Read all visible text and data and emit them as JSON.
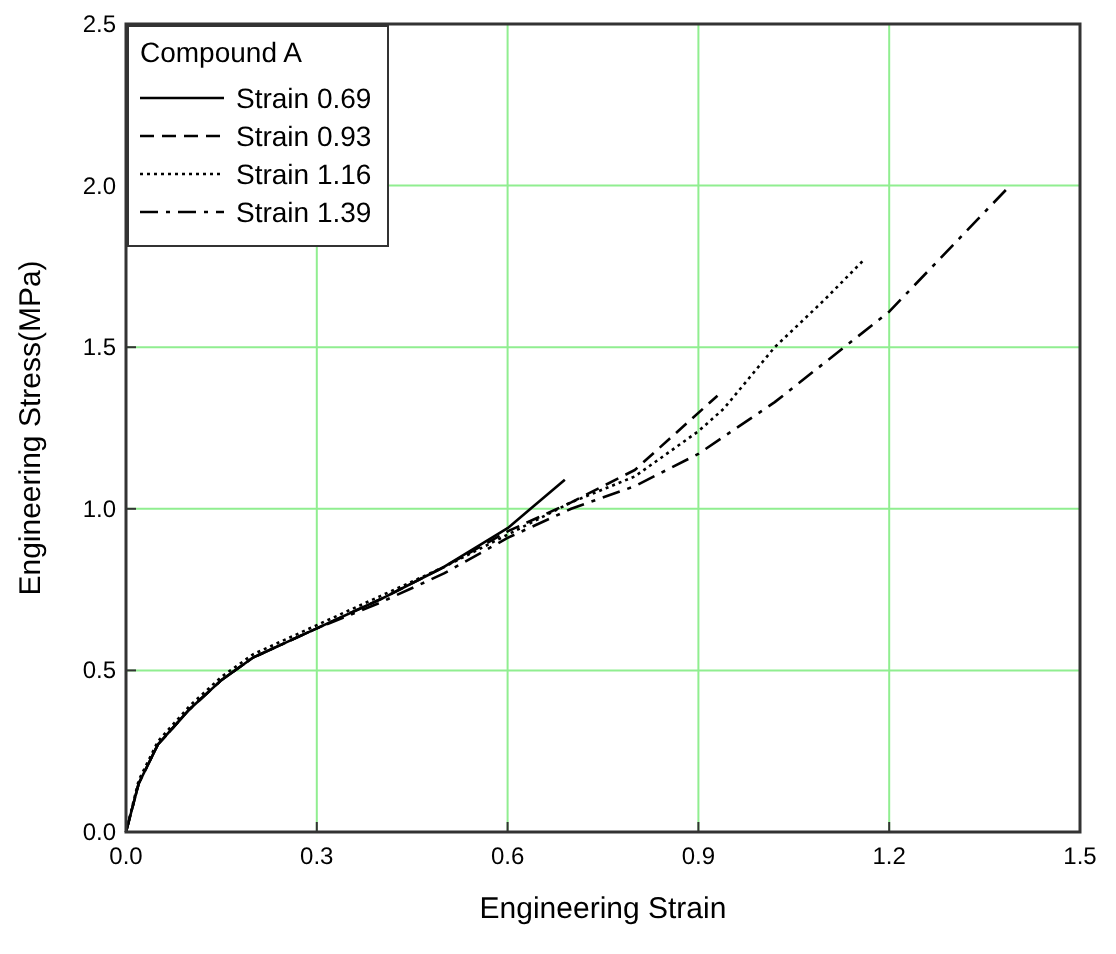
{
  "chart_data": {
    "type": "line",
    "xlabel": "Engineering Strain",
    "ylabel": "Engineering Stress(MPa)",
    "legend_title": "Compound A",
    "legend": "top left",
    "grid": true,
    "xlim": [
      0,
      1.5
    ],
    "ylim": [
      0,
      2.5
    ],
    "xticks": [
      {
        "value": 0,
        "label": "0.0"
      },
      0.3,
      0.6,
      0.9,
      1.2,
      1.5
    ],
    "yticks": [
      {
        "value": 0,
        "label": "0.0"
      },
      0.5,
      {
        "value": 1,
        "label": "1.0"
      },
      1.5,
      {
        "value": 2,
        "label": "2.0"
      },
      2.5
    ],
    "series": [
      {
        "name": "Strain 0.69",
        "color": "#000000",
        "line_style": "solid",
        "x": [
          0,
          0.02,
          0.05,
          0.1,
          0.15,
          0.2,
          0.3,
          0.4,
          0.5,
          0.6,
          0.69
        ],
        "values": [
          0,
          0.15,
          0.27,
          0.38,
          0.47,
          0.54,
          0.63,
          0.72,
          0.82,
          0.94,
          1.09
        ]
      },
      {
        "name": "Strain 0.93",
        "color": "#000000",
        "line_style": "dashed",
        "x": [
          0,
          0.02,
          0.05,
          0.1,
          0.15,
          0.2,
          0.3,
          0.4,
          0.5,
          0.6,
          0.7,
          0.8,
          0.93
        ],
        "values": [
          0,
          0.15,
          0.27,
          0.38,
          0.47,
          0.54,
          0.63,
          0.72,
          0.82,
          0.93,
          1.02,
          1.12,
          1.35
        ]
      },
      {
        "name": "Strain 1.16",
        "color": "#000000",
        "line_style": "dotted",
        "x": [
          0,
          0.02,
          0.05,
          0.1,
          0.15,
          0.2,
          0.3,
          0.4,
          0.5,
          0.6,
          0.7,
          0.8,
          0.9,
          0.94,
          1.02,
          1.1,
          1.16
        ],
        "values": [
          0,
          0.16,
          0.28,
          0.39,
          0.48,
          0.55,
          0.64,
          0.73,
          0.82,
          0.92,
          1.02,
          1.1,
          1.24,
          1.31,
          1.5,
          1.65,
          1.77
        ]
      },
      {
        "name": "Strain 1.39",
        "color": "#000000",
        "line_style": "dashdot",
        "x": [
          0,
          0.02,
          0.05,
          0.1,
          0.15,
          0.2,
          0.3,
          0.4,
          0.5,
          0.6,
          0.7,
          0.8,
          0.9,
          1.02,
          1.2,
          1.39
        ],
        "values": [
          0,
          0.15,
          0.27,
          0.38,
          0.47,
          0.54,
          0.63,
          0.71,
          0.8,
          0.91,
          1.0,
          1.07,
          1.17,
          1.33,
          1.61,
          2.0
        ]
      }
    ]
  }
}
